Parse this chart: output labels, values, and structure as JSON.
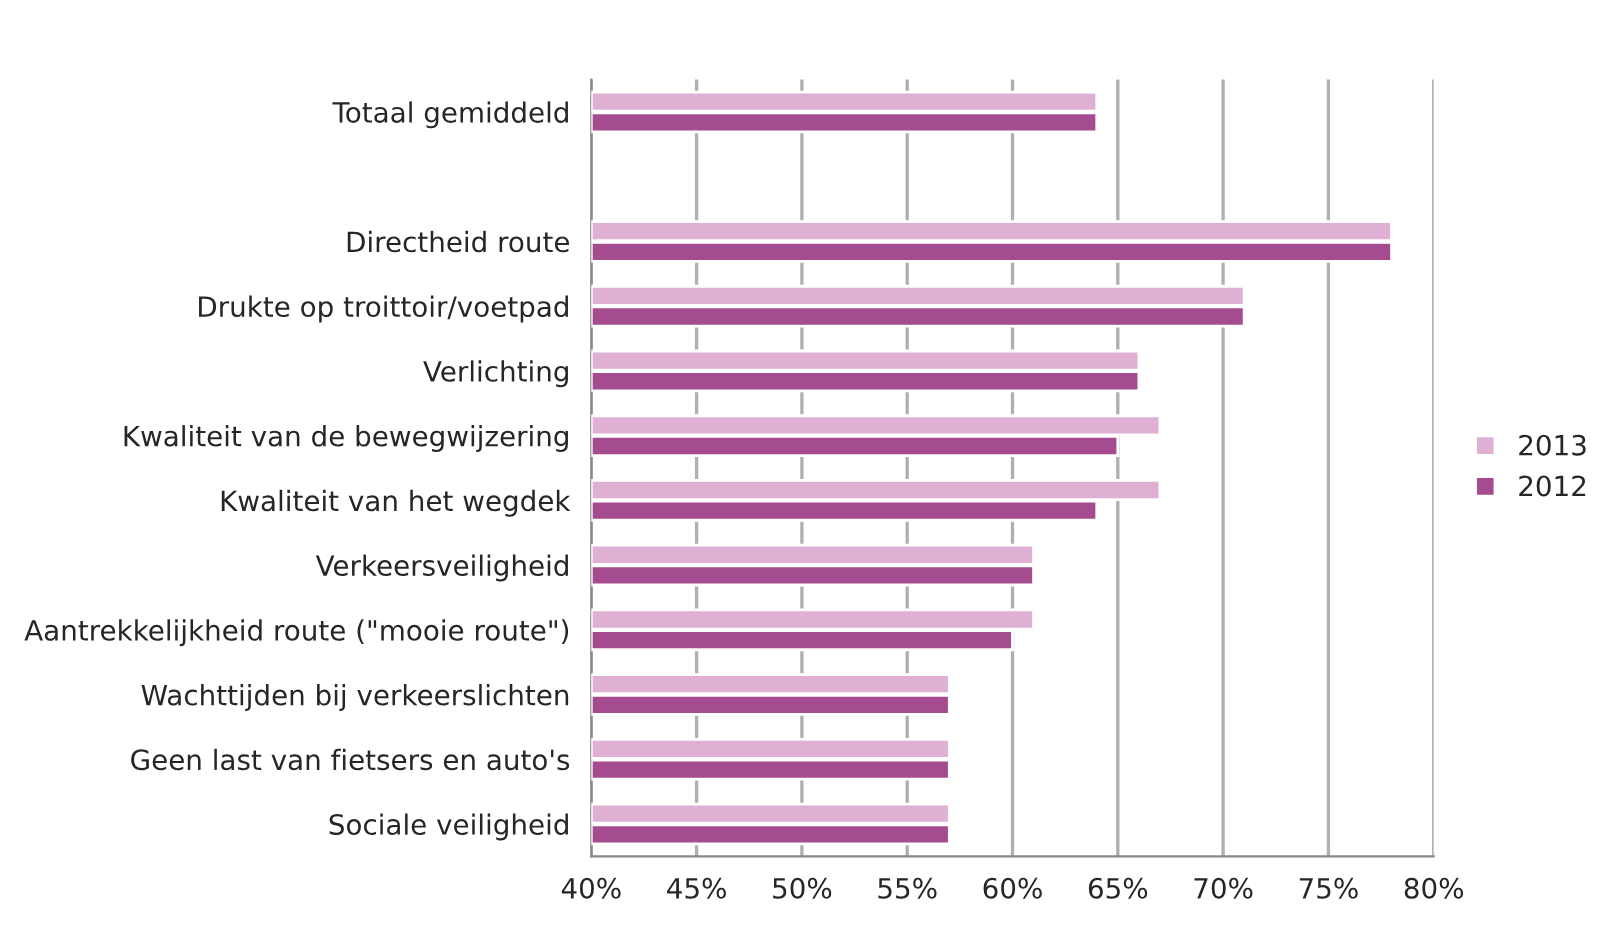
{
  "chart_data": {
    "type": "bar",
    "orientation": "horizontal",
    "categories": [
      "Totaal gemiddeld",
      null,
      "Directheid route",
      "Drukte op troittoir/voetpad",
      "Verlichting",
      "Kwaliteit van de bewegwijzering",
      "Kwaliteit van het wegdek",
      "Verkeersveiligheid",
      "Aantrekkelijkheid route (\"mooie route\")",
      "Wachttijden bij verkeerslichten",
      "Geen last van fietsers en auto's",
      "Sociale veiligheid"
    ],
    "series": [
      {
        "name": "2013",
        "color": "#dfb0d3",
        "values": [
          64,
          null,
          78,
          71,
          66,
          67,
          67,
          61,
          61,
          57,
          57,
          57
        ]
      },
      {
        "name": "2012",
        "color": "#a54b8f",
        "values": [
          64,
          null,
          78,
          71,
          66,
          65,
          64,
          61,
          60,
          57,
          57,
          57
        ]
      }
    ],
    "xlim": [
      40,
      80
    ],
    "xticks": [
      {
        "value": 40,
        "label": "40%"
      },
      {
        "value": 45,
        "label": "45%"
      },
      {
        "value": 50,
        "label": "50%"
      },
      {
        "value": 55,
        "label": "55%"
      },
      {
        "value": 60,
        "label": "60%"
      },
      {
        "value": 65,
        "label": "65%"
      },
      {
        "value": 70,
        "label": "70%"
      },
      {
        "value": 75,
        "label": "75%"
      },
      {
        "value": 80,
        "label": "80%"
      }
    ],
    "grid": "x",
    "legend": "right"
  }
}
